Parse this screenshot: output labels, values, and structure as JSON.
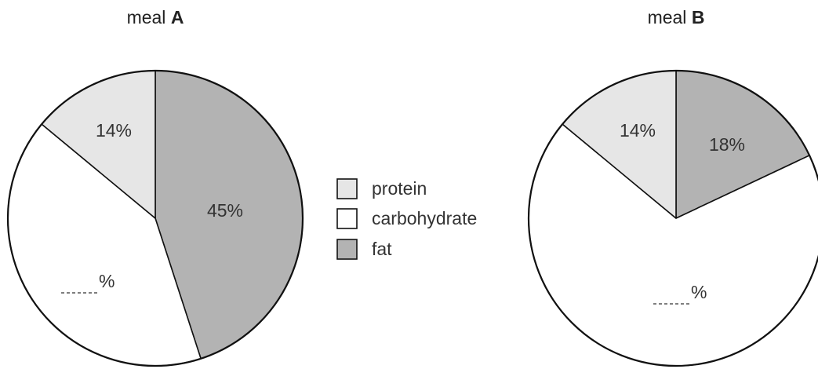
{
  "colors": {
    "protein": "#e6e6e6",
    "carbohydrate": "#ffffff",
    "fat": "#b3b3b3",
    "outline": "#111111"
  },
  "chart_data": [
    {
      "type": "pie",
      "title": "meal",
      "title_bold": "A",
      "start": "top",
      "direction": "clockwise",
      "slices": [
        {
          "name": "fat",
          "value": 45,
          "label": "45%"
        },
        {
          "name": "carbohydrate",
          "value": 41,
          "label": "%"
        },
        {
          "name": "protein",
          "value": 14,
          "label": "14%"
        }
      ]
    },
    {
      "type": "pie",
      "title": "meal",
      "title_bold": "B",
      "start": "top",
      "direction": "clockwise",
      "slices": [
        {
          "name": "fat",
          "value": 18,
          "label": "18%"
        },
        {
          "name": "carbohydrate",
          "value": 68,
          "label": "%"
        },
        {
          "name": "protein",
          "value": 14,
          "label": "14%"
        }
      ]
    }
  ],
  "legend": [
    {
      "key": "protein",
      "label": "protein"
    },
    {
      "key": "carbohydrate",
      "label": "carbohydrate"
    },
    {
      "key": "fat",
      "label": "fat"
    }
  ]
}
